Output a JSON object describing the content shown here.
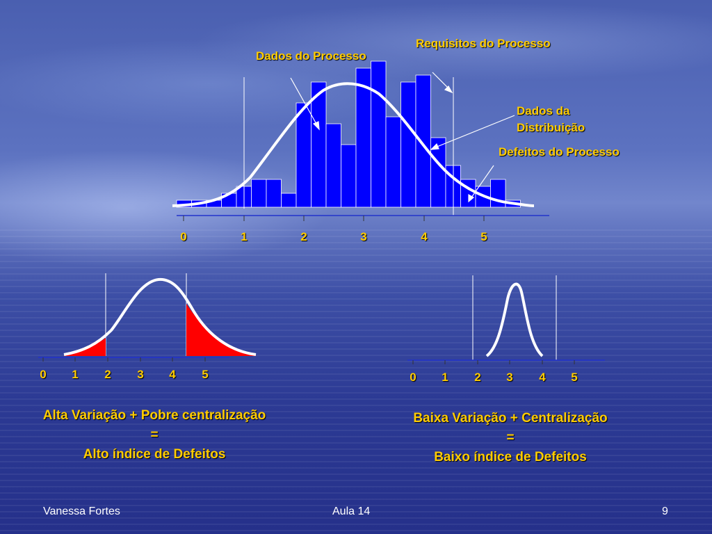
{
  "labels": {
    "requisitos": "Requisitos do Processo",
    "dados_processo": "Dados do Processo",
    "dados_distribuicao": "Dados da Distribuição",
    "defeitos": "Defeitos do Processo"
  },
  "axis_ticks": [
    "0",
    "1",
    "2",
    "3",
    "4",
    "5"
  ],
  "chart_data": {
    "type": "bar",
    "x": [
      0,
      0.25,
      0.5,
      0.75,
      1.0,
      1.25,
      1.5,
      1.75,
      2.0,
      2.25,
      2.5,
      2.75,
      3.0,
      3.25,
      3.5,
      3.75,
      4.0,
      4.25,
      4.5,
      4.75,
      5.0,
      5.25,
      5.5
    ],
    "values": [
      1,
      1,
      1,
      2,
      3,
      4,
      4,
      2,
      15,
      18,
      12,
      9,
      20,
      21,
      13,
      18,
      19,
      10,
      6,
      4,
      3,
      4,
      1
    ],
    "spec_limits": [
      1,
      4.5
    ],
    "xlim": [
      0,
      6
    ]
  },
  "left_caption": {
    "line1": "Alta Variação + Pobre centralização",
    "line2": "=",
    "line3": "Alto índice de Defeitos"
  },
  "right_caption": {
    "line1": "Baixa Variação + Centralização",
    "line2": "=",
    "line3": "Baixo índice de Defeitos"
  },
  "footer": {
    "author": "Vanessa Fortes",
    "lesson": "Aula 14",
    "page": "9"
  },
  "colors": {
    "bar_fill": "#0000ff",
    "curve": "#ffffff",
    "defect_fill": "#ff0000",
    "text": "#ffcc00"
  }
}
